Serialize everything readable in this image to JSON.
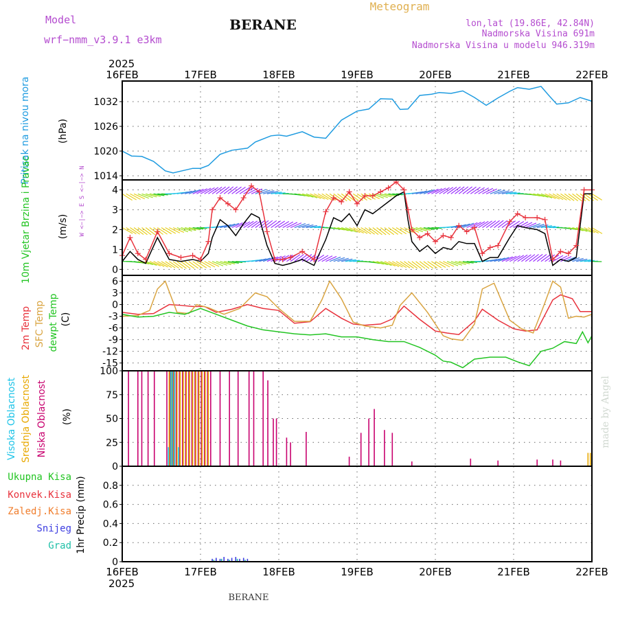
{
  "header": {
    "model_label": "Model",
    "model_name": "wrf−nmm_v3.9.1  e3km",
    "station": "BERANE",
    "title": "Meteogram",
    "lonlat": "lon,lat (19.86E, 42.84N)",
    "elevation": "Nadmorska Visina 691m",
    "model_elevation": "Nadmorska Visina u modelu 946.319m",
    "footer_station": "BERANE",
    "watermark": "made by Angel"
  },
  "colors": {
    "pressure": "#1e9be0",
    "wind_speed": "#000000",
    "gust": "#e8323c",
    "t2m": "#e8323c",
    "sfc": "#d9a441",
    "dewpt": "#22c422",
    "cloud_high": "#1ec4e8",
    "cloud_mid": "#e8a800",
    "cloud_low": "#c8006e",
    "rain_total": "#22c422",
    "rain_conv": "#e8323c",
    "rain_frozen": "#f07d2c",
    "snow": "#3c3ce0",
    "graupel": "#20c0a8",
    "model_label": "#b44ccf"
  },
  "chart_data": [
    {
      "id": "pressure",
      "type": "line",
      "title": "Pritisak na nivou mora",
      "ylabel": "(hPa)",
      "ylim": [
        1013,
        1037
      ],
      "yticks": [
        1014,
        1020,
        1026,
        1032
      ],
      "x_top_year": "2025",
      "x_bottom_year": "2025",
      "xlim": [
        0,
        6
      ],
      "xtick_labels": [
        "16FEB",
        "17FEB",
        "18FEB",
        "19FEB",
        "20FEB",
        "21FEB",
        "22FEB"
      ],
      "series": [
        {
          "name": "Pritisak na nivou mora",
          "color": "#1e9be0",
          "x": [
            0,
            0.12,
            0.25,
            0.4,
            0.55,
            0.65,
            0.9,
            1.0,
            1.1,
            1.25,
            1.4,
            1.6,
            1.7,
            1.9,
            2.0,
            2.1,
            2.3,
            2.45,
            2.6,
            2.8,
            3.0,
            3.15,
            3.3,
            3.45,
            3.55,
            3.65,
            3.8,
            3.95,
            4.05,
            4.2,
            4.35,
            4.5,
            4.65,
            4.8,
            4.95,
            5.05,
            5.2,
            5.35,
            5.45,
            5.55,
            5.7,
            5.85,
            6.0
          ],
          "values": [
            1020,
            1018.8,
            1018.7,
            1017.5,
            1015.2,
            1014.7,
            1015.8,
            1015.8,
            1016.5,
            1019.2,
            1020.2,
            1020.7,
            1022.2,
            1023.7,
            1023.9,
            1023.6,
            1024.7,
            1023.4,
            1023.1,
            1027.5,
            1029.7,
            1030.2,
            1032.7,
            1032.6,
            1030.1,
            1030.2,
            1033.5,
            1033.8,
            1034.2,
            1034.0,
            1034.6,
            1033.0,
            1031.1,
            1032.9,
            1034.5,
            1035.4,
            1035.0,
            1035.7,
            1033.5,
            1031.4,
            1031.7,
            1033.0,
            1032.1
          ]
        }
      ]
    },
    {
      "id": "wind",
      "type": "line",
      "title": "10m Vjetar Brzina i Pravac",
      "ylabel": "(m/s)",
      "ylim": [
        -0.3,
        4.5
      ],
      "yticks": [
        0,
        1,
        2,
        3,
        4
      ],
      "compass_text": "W <−|−> E  S <−|−> N",
      "series": [
        {
          "name": "Brzina",
          "color": "#000000",
          "x": [
            0,
            0.1,
            0.2,
            0.3,
            0.45,
            0.6,
            0.75,
            0.9,
            1.0,
            1.1,
            1.15,
            1.25,
            1.35,
            1.45,
            1.55,
            1.65,
            1.75,
            1.85,
            1.95,
            2.05,
            2.15,
            2.3,
            2.45,
            2.6,
            2.7,
            2.8,
            2.9,
            3.0,
            3.1,
            3.2,
            3.3,
            3.4,
            3.5,
            3.6,
            3.65,
            3.7,
            3.8,
            3.9,
            4.0,
            4.1,
            4.2,
            4.3,
            4.4,
            4.5,
            4.6,
            4.7,
            4.8,
            4.95,
            5.05,
            5.15,
            5.3,
            5.4,
            5.5,
            5.6,
            5.7,
            5.8,
            5.9,
            6.0
          ],
          "values": [
            0.4,
            0.9,
            0.5,
            0.3,
            1.6,
            0.5,
            0.4,
            0.5,
            0.4,
            0.8,
            1.6,
            2.5,
            2.2,
            1.7,
            2.3,
            2.8,
            2.6,
            1.2,
            0.3,
            0.2,
            0.3,
            0.5,
            0.2,
            1.5,
            2.6,
            2.4,
            2.8,
            2.2,
            3.0,
            2.8,
            3.1,
            3.4,
            3.7,
            3.9,
            2.5,
            1.4,
            0.9,
            1.2,
            0.8,
            1.1,
            1.0,
            1.4,
            1.3,
            1.3,
            0.4,
            0.6,
            0.6,
            1.6,
            2.2,
            2.1,
            2.0,
            1.8,
            0.2,
            0.5,
            0.4,
            0.6,
            3.8,
            3.8
          ]
        },
        {
          "name": "Udari",
          "color": "#e8323c",
          "x": [
            0,
            0.1,
            0.2,
            0.3,
            0.45,
            0.6,
            0.75,
            0.9,
            1.0,
            1.1,
            1.15,
            1.25,
            1.35,
            1.45,
            1.55,
            1.65,
            1.75,
            1.85,
            1.95,
            2.05,
            2.15,
            2.3,
            2.45,
            2.6,
            2.7,
            2.8,
            2.9,
            3.0,
            3.1,
            3.2,
            3.3,
            3.4,
            3.5,
            3.6,
            3.65,
            3.7,
            3.8,
            3.9,
            4.0,
            4.1,
            4.2,
            4.3,
            4.4,
            4.5,
            4.6,
            4.7,
            4.8,
            4.95,
            5.05,
            5.15,
            5.3,
            5.4,
            5.5,
            5.6,
            5.7,
            5.8,
            5.9,
            6.0
          ],
          "values": [
            0.7,
            1.6,
            0.8,
            0.5,
            1.9,
            0.8,
            0.6,
            0.7,
            0.5,
            1.4,
            3.0,
            3.6,
            3.3,
            3.0,
            3.6,
            4.2,
            3.9,
            1.9,
            0.5,
            0.5,
            0.6,
            0.9,
            0.5,
            2.9,
            3.6,
            3.4,
            3.9,
            3.3,
            3.7,
            3.7,
            3.9,
            4.1,
            4.4,
            4.0,
            3.0,
            2.0,
            1.6,
            1.8,
            1.4,
            1.7,
            1.6,
            2.2,
            1.9,
            2.1,
            0.8,
            1.1,
            1.2,
            2.4,
            2.8,
            2.6,
            2.6,
            2.5,
            0.5,
            0.9,
            0.8,
            1.2,
            4.0,
            4.0
          ]
        }
      ]
    },
    {
      "id": "temperature",
      "type": "line",
      "titles": [
        "2m Temp",
        "SFC Temp",
        "dewpt Temp"
      ],
      "ylabel": "(C)",
      "ylim": [
        -17,
        7.5
      ],
      "yticks": [
        6,
        3,
        0,
        -3,
        -6,
        -9,
        -12,
        -15
      ],
      "series": [
        {
          "name": "2m Temp",
          "color": "#e8323c",
          "x": [
            0,
            0.2,
            0.4,
            0.6,
            0.75,
            0.9,
            1.05,
            1.2,
            1.4,
            1.6,
            1.8,
            2.0,
            2.2,
            2.4,
            2.6,
            2.8,
            2.95,
            3.1,
            3.3,
            3.45,
            3.6,
            3.8,
            4.0,
            4.15,
            4.3,
            4.5,
            4.6,
            4.8,
            5.0,
            5.15,
            5.3,
            5.5,
            5.6,
            5.75,
            5.85,
            6.0
          ],
          "values": [
            -2,
            -2.5,
            -2.3,
            0,
            -0.2,
            -0.5,
            -0.5,
            -2,
            -1.2,
            0,
            -1,
            -1.5,
            -4.8,
            -4.4,
            -1,
            -3.5,
            -5,
            -5.3,
            -5,
            -3.7,
            -0.4,
            -3.8,
            -6.8,
            -7.3,
            -7.7,
            -4.2,
            -1.2,
            -4,
            -6.2,
            -6.8,
            -6.5,
            1.2,
            2.5,
            1.5,
            -1.8,
            -1.8
          ]
        },
        {
          "name": "SFC Temp",
          "color": "#d9a441",
          "x": [
            0,
            0.2,
            0.35,
            0.45,
            0.55,
            0.7,
            0.85,
            0.95,
            1.1,
            1.3,
            1.5,
            1.7,
            1.85,
            2.0,
            2.2,
            2.4,
            2.55,
            2.65,
            2.8,
            2.95,
            3.1,
            3.3,
            3.45,
            3.55,
            3.7,
            3.9,
            4.1,
            4.2,
            4.35,
            4.5,
            4.6,
            4.75,
            4.95,
            5.1,
            5.25,
            5.4,
            5.5,
            5.6,
            5.7,
            5.8,
            5.9,
            6.0
          ],
          "values": [
            -3,
            -2.8,
            -1.5,
            4,
            6,
            -2,
            -2.3,
            0,
            -0.8,
            -2.5,
            -1,
            3,
            2,
            -1,
            -4.3,
            -4.3,
            1.2,
            6,
            1.5,
            -4.5,
            -5.5,
            -6,
            -5.3,
            -0.2,
            3,
            -2,
            -8,
            -8.8,
            -9.2,
            -5,
            4,
            5.5,
            -4,
            -6.2,
            -7.3,
            0.5,
            6,
            4.5,
            -3.5,
            -3,
            -3.2,
            -2.5
          ]
        },
        {
          "name": "dewpt Temp",
          "color": "#22c422",
          "x": [
            0,
            0.2,
            0.4,
            0.6,
            0.8,
            1.0,
            1.2,
            1.4,
            1.6,
            1.8,
            2.0,
            2.2,
            2.4,
            2.6,
            2.8,
            3.0,
            3.2,
            3.4,
            3.6,
            3.8,
            4.0,
            4.1,
            4.2,
            4.35,
            4.5,
            4.7,
            4.9,
            5.05,
            5.2,
            5.35,
            5.5,
            5.65,
            5.8,
            5.88,
            5.95,
            6.0
          ],
          "values": [
            -2.5,
            -3.2,
            -3,
            -2,
            -2.5,
            -1,
            -2.5,
            -4,
            -5.5,
            -6.5,
            -7,
            -7.5,
            -7.8,
            -7.5,
            -8.3,
            -8.3,
            -9,
            -9.5,
            -9.5,
            -11,
            -13,
            -14.5,
            -14.8,
            -16.2,
            -14,
            -13.5,
            -13.5,
            -14.7,
            -15.7,
            -12,
            -11.2,
            -9.5,
            -10,
            -7,
            -9.8,
            -8
          ]
        }
      ]
    },
    {
      "id": "clouds",
      "type": "bar",
      "titles": [
        "Visoka Oblacnost",
        "Srednja Oblacnost",
        "Niska Oblacnost"
      ],
      "ylabel": "(%)",
      "ylim": [
        0,
        100
      ],
      "yticks": [
        0,
        25,
        50,
        75,
        100
      ],
      "series": [
        {
          "name": "Niska Oblacnost",
          "color": "#c8006e",
          "x": [
            0.08,
            0.2,
            0.25,
            0.33,
            0.41,
            0.57,
            0.61,
            0.65,
            0.69,
            0.73,
            0.77,
            0.81,
            0.85,
            0.89,
            0.93,
            0.97,
            1.01,
            1.05,
            1.09,
            1.13,
            1.25,
            1.37,
            1.48,
            1.62,
            1.68,
            1.8,
            1.86,
            1.93,
            1.97,
            2.1,
            2.15,
            2.35,
            2.9,
            3.05,
            3.15,
            3.22,
            3.35,
            3.45,
            3.7,
            4.45,
            4.8,
            5.3,
            5.5,
            5.6
          ],
          "values": [
            100,
            100,
            100,
            100,
            100,
            100,
            100,
            100,
            100,
            100,
            100,
            100,
            100,
            100,
            100,
            100,
            100,
            100,
            100,
            100,
            100,
            100,
            100,
            100,
            100,
            100,
            90,
            50,
            50,
            30,
            25,
            36,
            10,
            35,
            50,
            60,
            38,
            35,
            5,
            8,
            6,
            7,
            7,
            6
          ]
        },
        {
          "name": "Srednja Oblacnost",
          "color": "#e8a800",
          "x": [
            0.6,
            0.63,
            0.66,
            0.7,
            0.74,
            0.78,
            0.82,
            0.86,
            0.9,
            0.94,
            0.98,
            1.02,
            1.06,
            1.1,
            5.95,
            5.98
          ],
          "values": [
            100,
            100,
            100,
            100,
            100,
            100,
            100,
            100,
            100,
            100,
            100,
            100,
            100,
            100,
            14,
            14
          ]
        },
        {
          "name": "Visoka Oblacnost",
          "color": "#1ec4e8",
          "x": [
            0.59,
            0.62,
            0.64,
            0.67,
            0.72
          ],
          "values": [
            20,
            100,
            100,
            100,
            20
          ]
        }
      ]
    },
    {
      "id": "precip",
      "type": "bar",
      "ylabel": "1hr Precip (mm)",
      "legend": [
        "Ukupna Kisa",
        "Konvek.Kisa",
        "Zaledj.Kisa",
        "Snijeg",
        "Grad"
      ],
      "ylim": [
        0,
        1
      ],
      "yticks": [
        0,
        0.2,
        0.4,
        0.6,
        0.8
      ],
      "series": [
        {
          "name": "Snijeg",
          "color": "#3c3ce0",
          "x": [
            1.15,
            1.2,
            1.25,
            1.3,
            1.35,
            1.4,
            1.45,
            1.5,
            1.55,
            1.6
          ],
          "values": [
            0.03,
            0.04,
            0.03,
            0.05,
            0.03,
            0.04,
            0.05,
            0.03,
            0.04,
            0.03
          ]
        },
        {
          "name": "Grad",
          "color": "#20c0a8",
          "x": [
            1.17,
            1.27,
            1.37,
            1.47,
            1.57
          ],
          "values": [
            0.02,
            0.03,
            0.02,
            0.03,
            0.02
          ]
        }
      ]
    }
  ]
}
